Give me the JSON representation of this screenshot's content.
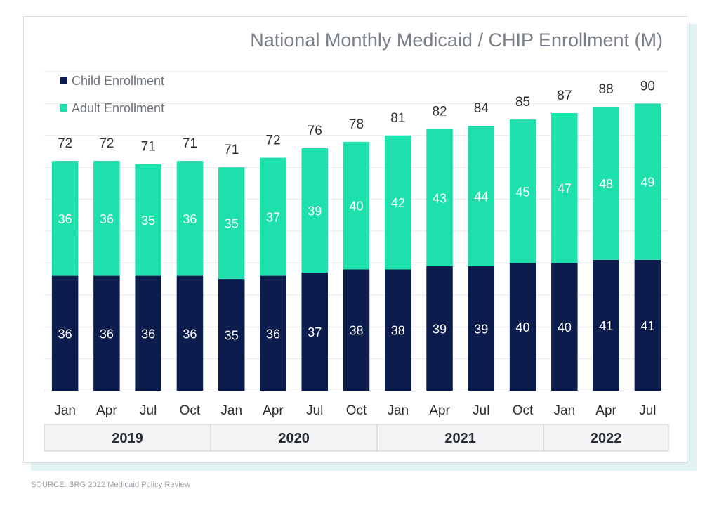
{
  "chart_data": {
    "type": "bar",
    "stacked": true,
    "title": "National Monthly Medicaid / CHIP Enrollment (M)",
    "categories": [
      "Jan",
      "Apr",
      "Jul",
      "Oct",
      "Jan",
      "Apr",
      "Jul",
      "Oct",
      "Jan",
      "Apr",
      "Jul",
      "Oct",
      "Jan",
      "Apr",
      "Jul"
    ],
    "year_groups": [
      {
        "label": "2019",
        "count": 4
      },
      {
        "label": "2020",
        "count": 4
      },
      {
        "label": "2021",
        "count": 4
      },
      {
        "label": "2022",
        "count": 3
      }
    ],
    "series": [
      {
        "name": "Child Enrollment",
        "color": "#0c1d4d",
        "values": [
          36,
          36,
          36,
          36,
          35,
          36,
          37,
          38,
          38,
          39,
          39,
          40,
          40,
          41,
          41
        ]
      },
      {
        "name": "Adult Enrollment",
        "color": "#1de0ac",
        "values": [
          36,
          36,
          35,
          36,
          35,
          37,
          39,
          40,
          42,
          43,
          44,
          45,
          47,
          48,
          49
        ]
      }
    ],
    "totals": [
      72,
      72,
      71,
      71,
      71,
      72,
      76,
      78,
      81,
      82,
      84,
      85,
      87,
      88,
      90
    ],
    "ylim": [
      0,
      100
    ],
    "grid": true,
    "legend_position": "top-left",
    "xlabel": "",
    "ylabel": ""
  },
  "source": "SOURCE:  BRG 2022 Medicaid Policy Review"
}
